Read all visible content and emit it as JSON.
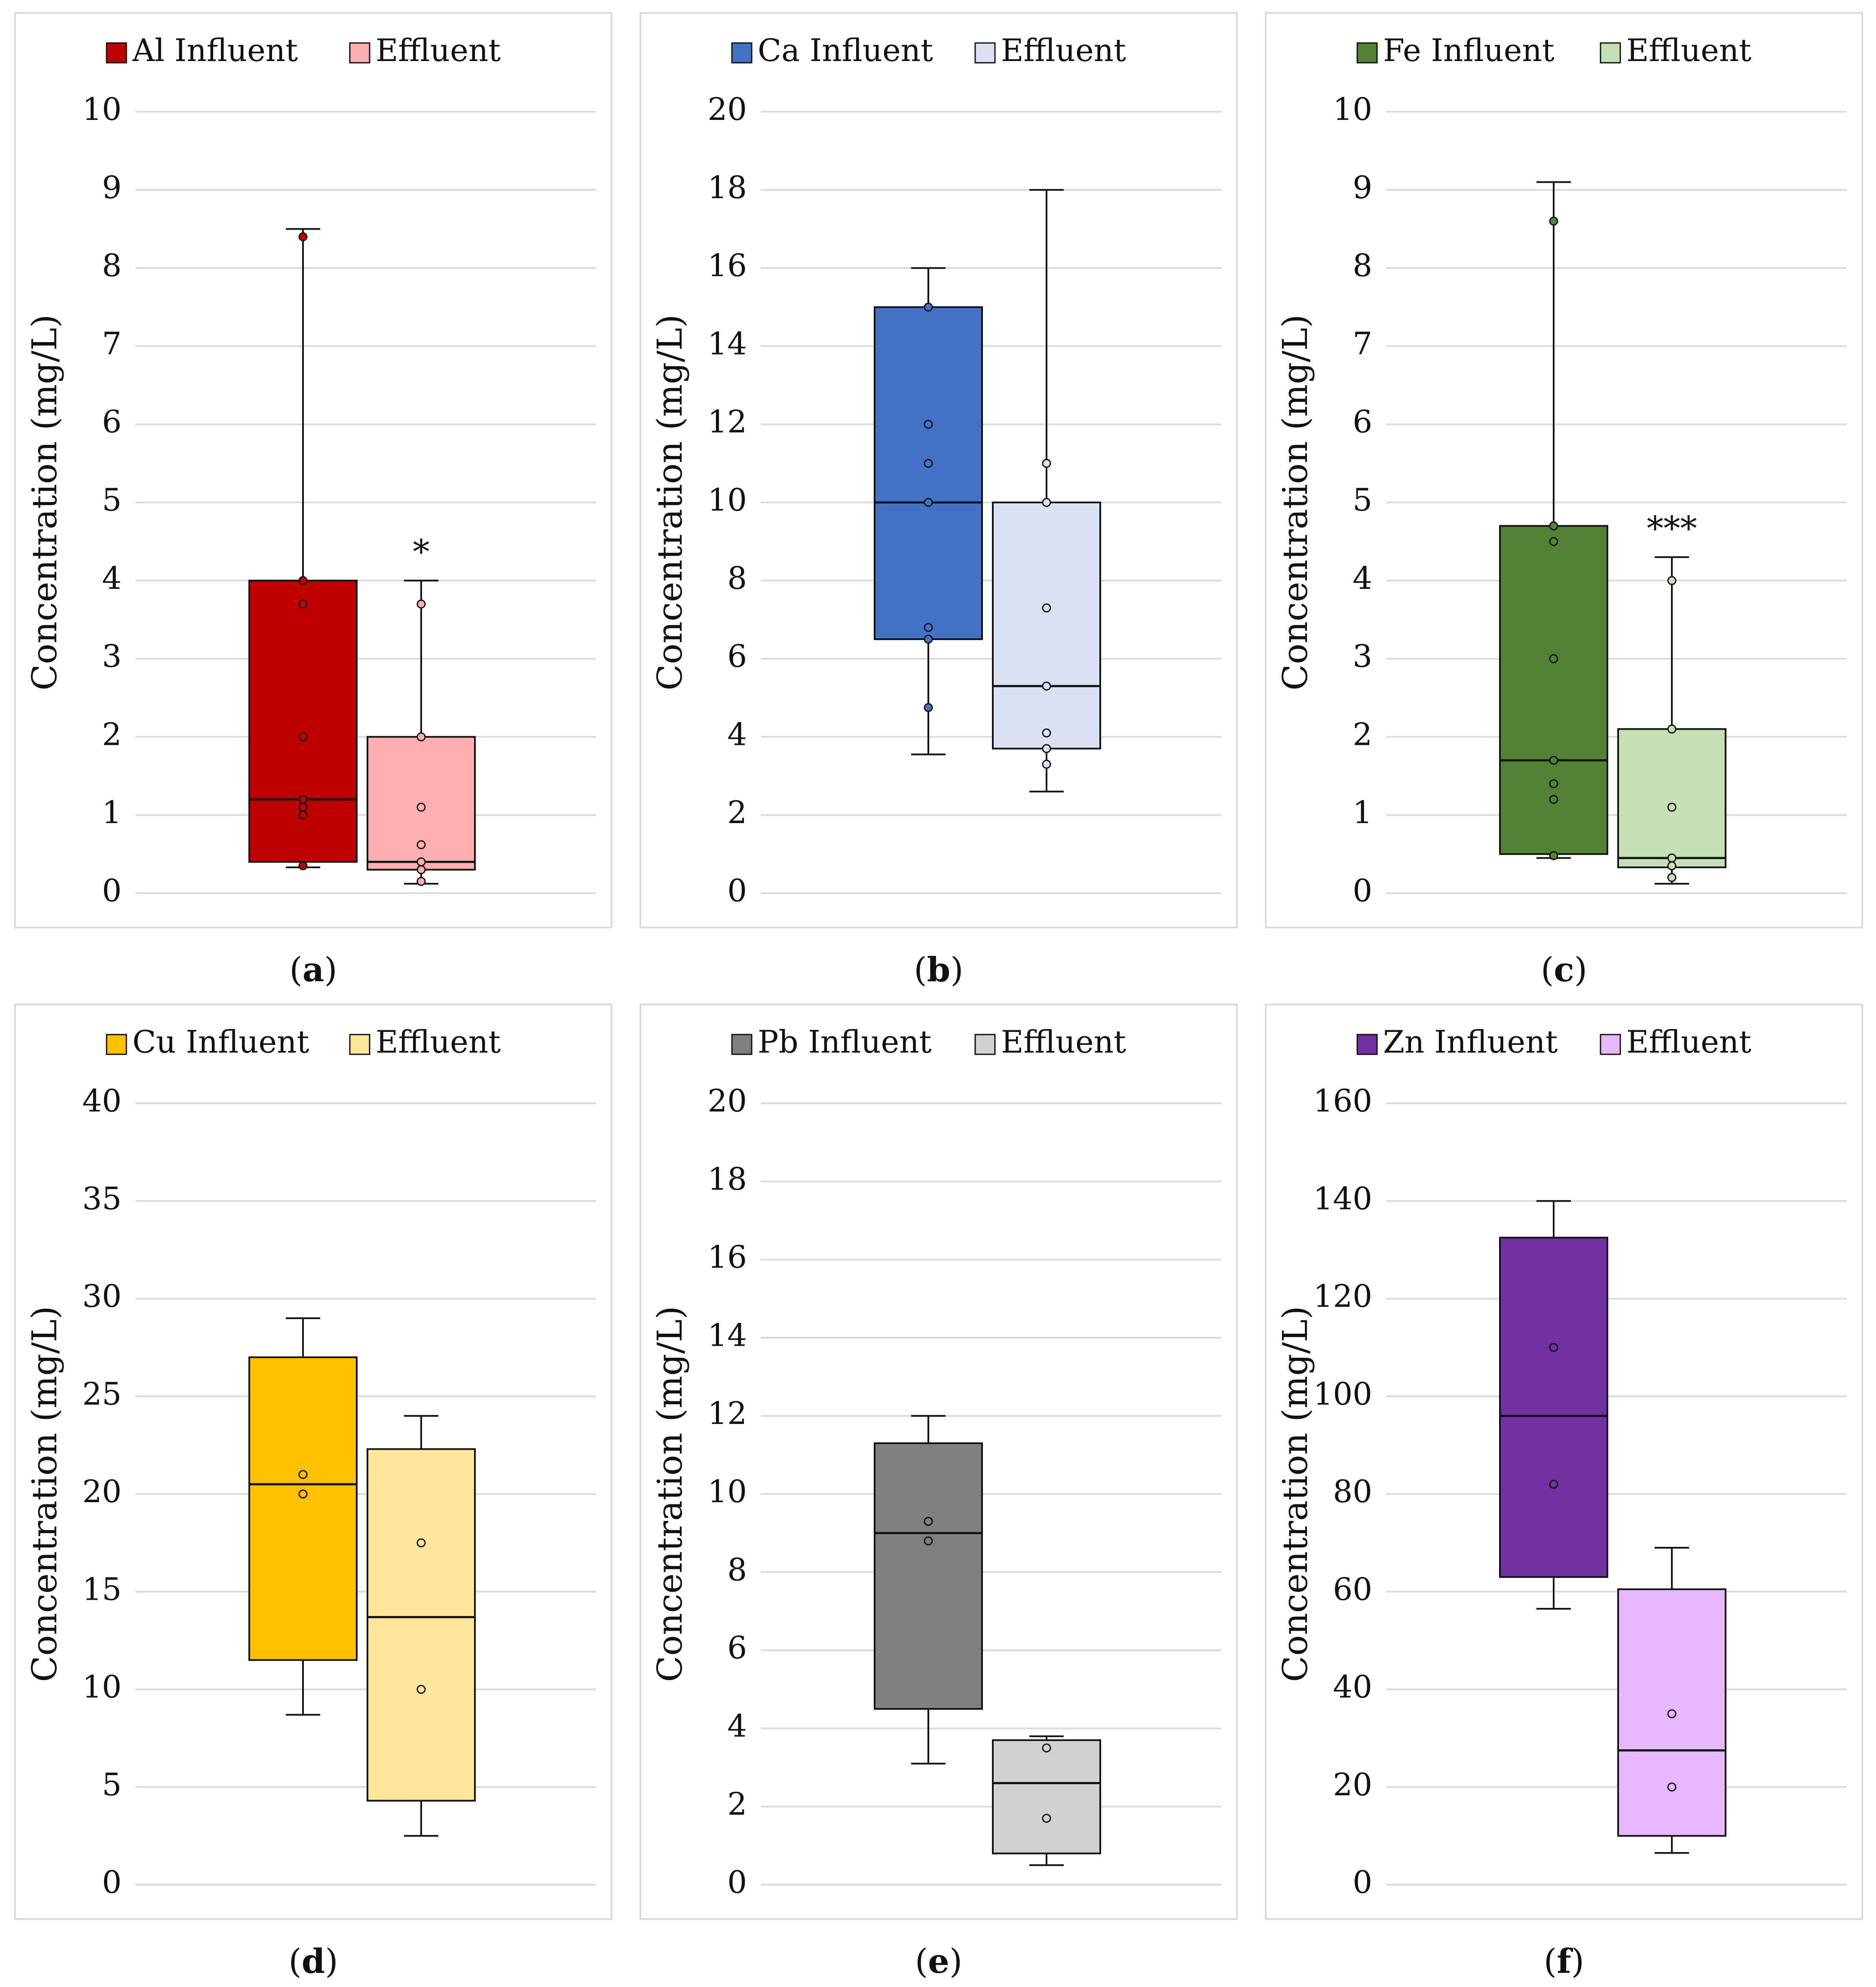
{
  "chart_data": [
    {
      "type": "boxplot",
      "panel_label": "a",
      "ylabel": "Concentration (mg/L)",
      "ylim": [
        0,
        10
      ],
      "yticks": [
        0,
        1,
        2,
        3,
        4,
        5,
        6,
        7,
        8,
        9,
        10
      ],
      "grid": true,
      "legend": "top",
      "series": [
        {
          "name": "Al Influent",
          "color": "#C00000",
          "whisker_low": 0.33,
          "q1": 0.4,
          "median": 1.2,
          "q3": 4.0,
          "whisker_high": 8.5,
          "points": [
            8.4,
            4.0,
            3.7,
            2.0,
            1.2,
            1.1,
            1.0,
            0.35
          ]
        },
        {
          "name": "Effluent",
          "color": "#FFAFAF",
          "whisker_low": 0.12,
          "q1": 0.3,
          "median": 0.4,
          "q3": 2.0,
          "whisker_high": 4.0,
          "points": [
            3.7,
            2.0,
            1.1,
            0.62,
            0.4,
            0.3,
            0.15
          ]
        }
      ],
      "annotation": "*"
    },
    {
      "type": "boxplot",
      "panel_label": "b",
      "ylabel": "Concentration (mg/L)",
      "ylim": [
        0,
        20
      ],
      "yticks": [
        0,
        2,
        4,
        6,
        8,
        10,
        12,
        14,
        16,
        18,
        20
      ],
      "grid": true,
      "legend": "top",
      "series": [
        {
          "name": "Ca Influent",
          "color": "#4472C4",
          "whisker_low": 3.55,
          "q1": 6.5,
          "median": 10.0,
          "q3": 15.0,
          "whisker_high": 16.0,
          "points": [
            15.0,
            12.0,
            11.0,
            10.0,
            6.8,
            6.5,
            4.75
          ]
        },
        {
          "name": "Effluent",
          "color": "#DAE3F3",
          "whisker_low": 2.6,
          "q1": 3.7,
          "median": 5.3,
          "q3": 10.0,
          "whisker_high": 18.0,
          "points": [
            11.0,
            10.0,
            7.3,
            5.3,
            4.1,
            3.7,
            3.3
          ]
        }
      ],
      "annotation": ""
    },
    {
      "type": "boxplot",
      "panel_label": "c",
      "ylabel": "Concentration (mg/L)",
      "ylim": [
        0,
        10
      ],
      "yticks": [
        0,
        1,
        2,
        3,
        4,
        5,
        6,
        7,
        8,
        9,
        10
      ],
      "grid": true,
      "legend": "top",
      "series": [
        {
          "name": "Fe Influent",
          "color": "#548235",
          "whisker_low": 0.45,
          "q1": 0.5,
          "median": 1.7,
          "q3": 4.7,
          "whisker_high": 9.1,
          "points": [
            8.6,
            4.7,
            4.5,
            3.0,
            1.7,
            1.4,
            1.2,
            0.48
          ]
        },
        {
          "name": "Effluent",
          "color": "#C5E0B4",
          "whisker_low": 0.12,
          "q1": 0.33,
          "median": 0.45,
          "q3": 2.1,
          "whisker_high": 4.3,
          "points": [
            4.0,
            2.1,
            1.1,
            0.45,
            0.35,
            0.2
          ]
        }
      ],
      "annotation": "***"
    },
    {
      "type": "boxplot",
      "panel_label": "d",
      "ylabel": "Concentration (mg/L)",
      "ylim": [
        0,
        40
      ],
      "yticks": [
        0,
        5,
        10,
        15,
        20,
        25,
        30,
        35,
        40
      ],
      "grid": true,
      "legend": "top",
      "series": [
        {
          "name": "Cu Influent",
          "color": "#FFC000",
          "whisker_low": 8.7,
          "q1": 11.5,
          "median": 20.5,
          "q3": 27.0,
          "whisker_high": 29.0,
          "points": [
            21.0,
            20.0
          ]
        },
        {
          "name": "Effluent",
          "color": "#FFE699",
          "whisker_low": 2.5,
          "q1": 4.3,
          "median": 13.7,
          "q3": 22.3,
          "whisker_high": 24.0,
          "points": [
            17.5,
            10.0
          ]
        }
      ],
      "annotation": ""
    },
    {
      "type": "boxplot",
      "panel_label": "e",
      "ylabel": "Concentration (mg/L)",
      "ylim": [
        0,
        20
      ],
      "yticks": [
        0,
        2,
        4,
        6,
        8,
        10,
        12,
        14,
        16,
        18,
        20
      ],
      "grid": true,
      "legend": "top",
      "series": [
        {
          "name": "Pb Influent",
          "color": "#7F7F7F",
          "whisker_low": 3.1,
          "q1": 4.5,
          "median": 9.0,
          "q3": 11.3,
          "whisker_high": 12.0,
          "points": [
            9.3,
            8.8
          ]
        },
        {
          "name": "Effluent",
          "color": "#D0D0D0",
          "whisker_low": 0.5,
          "q1": 0.8,
          "median": 2.6,
          "q3": 3.7,
          "whisker_high": 3.8,
          "points": [
            3.5,
            1.7
          ]
        }
      ],
      "annotation": ""
    },
    {
      "type": "boxplot",
      "panel_label": "f",
      "ylabel": "Concentration (mg/L)",
      "ylim": [
        0,
        160
      ],
      "yticks": [
        0,
        20,
        40,
        60,
        80,
        100,
        120,
        140,
        160
      ],
      "grid": true,
      "legend": "top",
      "series": [
        {
          "name": "Zn Influent",
          "color": "#7030A0",
          "whisker_low": 56.5,
          "q1": 63.0,
          "median": 96.0,
          "q3": 132.5,
          "whisker_high": 140.0,
          "points": [
            110.0,
            82.0
          ]
        },
        {
          "name": "Effluent",
          "color": "#E6B8FF",
          "whisker_low": 6.5,
          "q1": 10.0,
          "median": 27.5,
          "q3": 60.5,
          "whisker_high": 69.0,
          "points": [
            35.0,
            20.0
          ]
        }
      ],
      "annotation": ""
    }
  ]
}
